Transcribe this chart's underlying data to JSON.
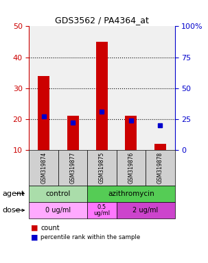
{
  "title": "GDS3562 / PA4364_at",
  "samples": [
    "GSM319874",
    "GSM319877",
    "GSM319875",
    "GSM319876",
    "GSM319878"
  ],
  "counts": [
    34,
    21,
    45,
    21,
    12
  ],
  "percentiles": [
    27,
    22,
    31,
    24,
    20
  ],
  "ylim_left": [
    10,
    50
  ],
  "ylim_right": [
    0,
    100
  ],
  "yticks_left": [
    10,
    20,
    30,
    40,
    50
  ],
  "yticks_right": [
    0,
    25,
    50,
    75,
    100
  ],
  "bar_color": "#cc0000",
  "dot_color": "#0000cc",
  "grid_lines": [
    20,
    30,
    40
  ],
  "legend_count_color": "#cc0000",
  "legend_pct_color": "#0000cc",
  "tick_color_left": "#cc0000",
  "tick_color_right": "#0000cc",
  "bar_width": 0.4,
  "plot_bg": "#f0f0f0",
  "control_color": "#aaddaa",
  "azith_color": "#55cc55",
  "dose0_color": "#ffaaff",
  "dose05_color": "#ff77ff",
  "dose2_color": "#cc44cc"
}
